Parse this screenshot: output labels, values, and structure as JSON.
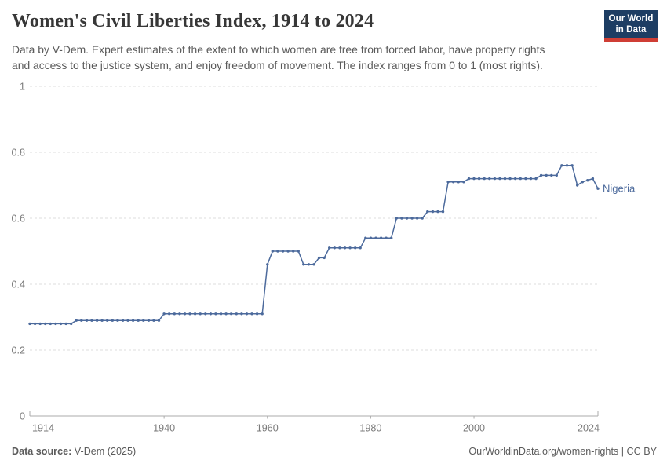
{
  "header": {
    "title": "Women's Civil Liberties Index, 1914 to 2024",
    "subtitle_lines": [
      "Data by V-Dem. Expert estimates of the extent to which women are free from forced labor, have property rights",
      "and access to the justice system, and enjoy freedom of movement. The index ranges from 0 to 1 (most rights)."
    ],
    "logo": {
      "line1": "Our World",
      "line2": "in Data",
      "bg_color": "#1d3d63",
      "accent_color": "#cf3e35"
    }
  },
  "chart_data": {
    "type": "line",
    "title": "Women's Civil Liberties Index, 1914 to 2024",
    "entity": "Nigeria",
    "xlabel": "",
    "ylabel": "",
    "xlim": [
      1914,
      2024
    ],
    "ylim": [
      0,
      1
    ],
    "grid": "horizontal-dashed",
    "x_ticks": [
      1914,
      1940,
      1960,
      1980,
      2000,
      2024
    ],
    "y_ticks": [
      0,
      0.2,
      0.4,
      0.6,
      0.8,
      1
    ],
    "y_tick_labels": [
      "0",
      "0.2",
      "0.4",
      "0.6",
      "0.8",
      "1"
    ],
    "series": [
      {
        "name": "Nigeria",
        "color": "#4c6a9c",
        "x_start": 1914,
        "x_step": 1,
        "values": [
          0.28,
          0.28,
          0.28,
          0.28,
          0.28,
          0.28,
          0.28,
          0.28,
          0.28,
          0.29,
          0.29,
          0.29,
          0.29,
          0.29,
          0.29,
          0.29,
          0.29,
          0.29,
          0.29,
          0.29,
          0.29,
          0.29,
          0.29,
          0.29,
          0.29,
          0.29,
          0.31,
          0.31,
          0.31,
          0.31,
          0.31,
          0.31,
          0.31,
          0.31,
          0.31,
          0.31,
          0.31,
          0.31,
          0.31,
          0.31,
          0.31,
          0.31,
          0.31,
          0.31,
          0.31,
          0.31,
          0.46,
          0.5,
          0.5,
          0.5,
          0.5,
          0.5,
          0.5,
          0.46,
          0.46,
          0.46,
          0.48,
          0.48,
          0.51,
          0.51,
          0.51,
          0.51,
          0.51,
          0.51,
          0.51,
          0.54,
          0.54,
          0.54,
          0.54,
          0.54,
          0.54,
          0.6,
          0.6,
          0.6,
          0.6,
          0.6,
          0.6,
          0.62,
          0.62,
          0.62,
          0.62,
          0.71,
          0.71,
          0.71,
          0.71,
          0.72,
          0.72,
          0.72,
          0.72,
          0.72,
          0.72,
          0.72,
          0.72,
          0.72,
          0.72,
          0.72,
          0.72,
          0.72,
          0.72,
          0.73,
          0.73,
          0.73,
          0.73,
          0.76,
          0.76,
          0.76,
          0.7,
          0.71,
          0.715,
          0.72,
          0.69
        ]
      }
    ]
  },
  "footer": {
    "source_label": "Data source:",
    "source_value": " V-Dem (2025)",
    "credit": "OurWorldinData.org/women-rights | CC BY"
  },
  "colors": {
    "series": "#4c6a9c",
    "grid": "#dcdcdc",
    "axis": "#ababab",
    "tick_text": "#7a7a7a",
    "title_text": "#373737",
    "subtitle_text": "#5a5a5a"
  }
}
